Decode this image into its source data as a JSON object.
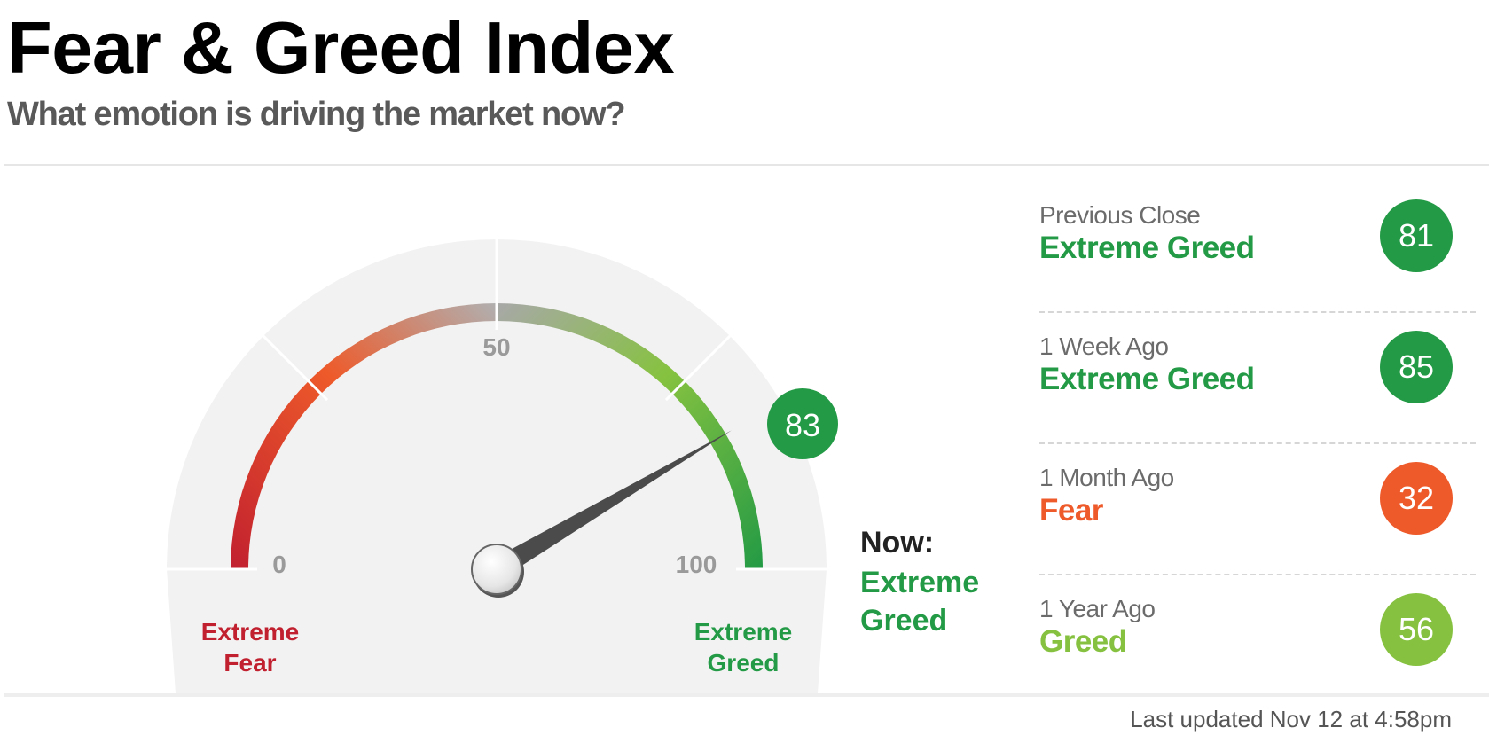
{
  "header": {
    "title": "Fear & Greed Index",
    "subtitle": "What emotion is driving the market now?"
  },
  "gauge": {
    "value": 83,
    "scale_min": 0,
    "scale_max": 100,
    "tick_labels": {
      "min": "0",
      "mid": "50",
      "max": "100"
    },
    "left_end_label": [
      "Extreme",
      "Fear"
    ],
    "right_end_label": [
      "Extreme",
      "Greed"
    ],
    "value_badge": "83",
    "now_label": "Now:",
    "now_rating": "Extreme Greed",
    "colors": {
      "extreme_fear": "#c1202f",
      "fear": "#ee5a2a",
      "neutral": "#aeaeae",
      "greed": "#86c240",
      "extreme_greed": "#239a45",
      "track": "#f2f2f2",
      "needle": "#4b4b4b"
    }
  },
  "history": [
    {
      "label": "Previous Close",
      "rating": "Extreme Greed",
      "value": "81",
      "color": "#239a45"
    },
    {
      "label": "1 Week Ago",
      "rating": "Extreme Greed",
      "value": "85",
      "color": "#239a45"
    },
    {
      "label": "1 Month Ago",
      "rating": "Fear",
      "value": "32",
      "color": "#ee5a2a"
    },
    {
      "label": "1 Year Ago",
      "rating": "Greed",
      "value": "56",
      "color": "#86c240"
    }
  ],
  "footer": {
    "last_updated": "Last updated Nov 12 at 4:58pm"
  }
}
